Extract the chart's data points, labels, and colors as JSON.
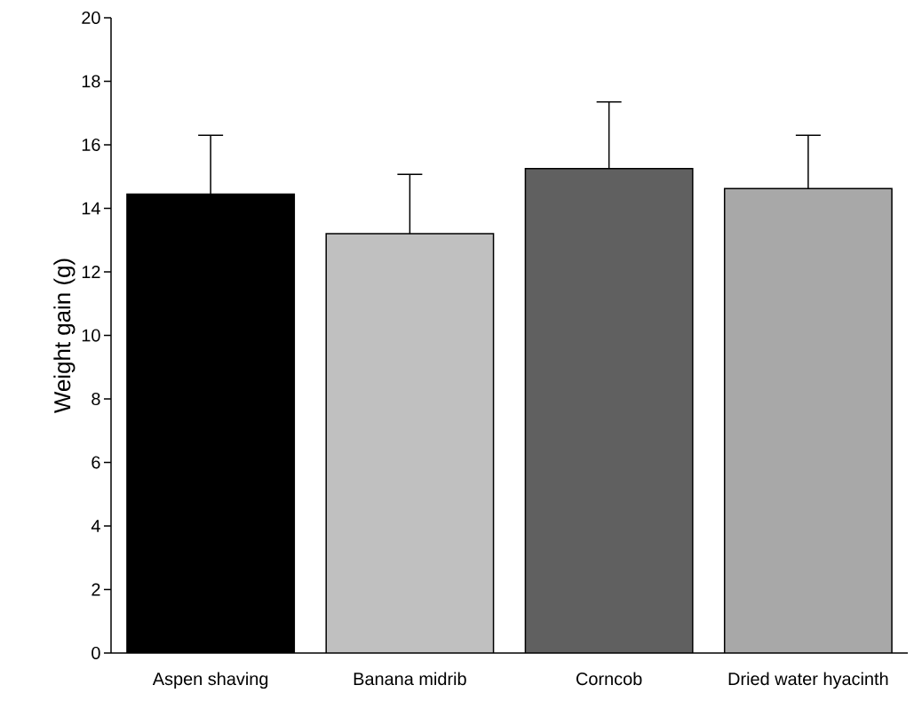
{
  "chart_data": {
    "type": "bar",
    "ylabel": "Weight gain (g)",
    "categories": [
      "Aspen shaving",
      "Banana midrib",
      "Corncob",
      "Dried water hyacinth"
    ],
    "values": [
      14.45,
      13.2,
      15.25,
      14.62
    ],
    "errors": [
      [
        14.45,
        16.3
      ],
      [
        13.2,
        15.07
      ],
      [
        15.25,
        17.35
      ],
      [
        14.62,
        16.3
      ]
    ],
    "colors": [
      "#000000",
      "#c0c0c0",
      "#606060",
      "#a8a8a8"
    ],
    "ylim": [
      0,
      20
    ],
    "yticks": [
      0,
      2,
      4,
      6,
      8,
      10,
      12,
      14,
      16,
      18,
      20
    ],
    "grid": false
  }
}
